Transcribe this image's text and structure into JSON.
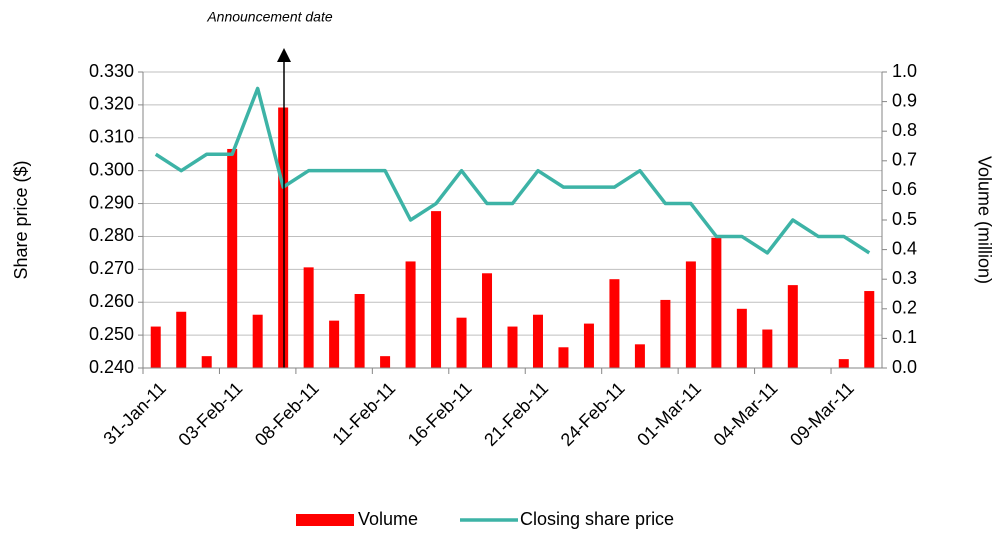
{
  "chart_data": {
    "type": "bar-line",
    "annotation": "Announcement date",
    "y_label": "Share price ($)",
    "y2_label": "Volume (million)",
    "categories": [
      "31-Jan-11",
      null,
      null,
      "03-Feb-11",
      null,
      null,
      "08-Feb-11",
      null,
      null,
      "11-Feb-11",
      null,
      null,
      "16-Feb-11",
      null,
      null,
      "21-Feb-11",
      null,
      null,
      "24-Feb-11",
      null,
      null,
      "01-Mar-11",
      null,
      null,
      "04-Mar-11",
      null,
      null,
      "09-Mar-11",
      null
    ],
    "series": [
      {
        "name": "Volume",
        "type": "bar",
        "axis": "y2",
        "color": "#ff0000",
        "values": [
          0.14,
          0.19,
          0.04,
          0.74,
          0.18,
          0.88,
          0.34,
          0.16,
          0.25,
          0.04,
          0.36,
          0.53,
          0.17,
          0.32,
          0.14,
          0.18,
          0.07,
          0.15,
          0.3,
          0.08,
          0.23,
          0.36,
          0.44,
          0.2,
          0.13,
          0.28,
          0,
          0.03,
          0.26
        ]
      },
      {
        "name": "Closing share price",
        "type": "line",
        "color": "#3db3a6",
        "values": [
          0.305,
          0.3,
          0.305,
          0.305,
          0.325,
          0.295,
          0.3,
          0.3,
          0.3,
          0.3,
          0.285,
          0.29,
          0.3,
          0.29,
          0.29,
          0.3,
          0.295,
          0.295,
          0.295,
          0.3,
          0.29,
          0.29,
          0.28,
          0.28,
          0.275,
          0.285,
          0.28,
          0.28,
          0.275
        ]
      }
    ],
    "ylim": [
      0.24,
      0.33
    ],
    "yticks": [
      {
        "value": 0.24,
        "label": "0.240"
      },
      {
        "value": 0.25,
        "label": "0.250"
      },
      {
        "value": 0.26,
        "label": "0.260"
      },
      {
        "value": 0.27,
        "label": "0.270"
      },
      {
        "value": 0.28,
        "label": "0.280"
      },
      {
        "value": 0.29,
        "label": "0.290"
      },
      {
        "value": 0.3,
        "label": "0.300"
      },
      {
        "value": 0.31,
        "label": "0.310"
      },
      {
        "value": 0.32,
        "label": "0.320"
      },
      {
        "value": 0.33,
        "label": "0.330"
      }
    ],
    "y2lim": [
      0,
      1
    ],
    "y2ticks": [
      {
        "value": 0,
        "label": "0.0"
      },
      0.1,
      0.2,
      0.3,
      0.4,
      0.5,
      0.6,
      0.7,
      0.8,
      0.9,
      {
        "value": 1,
        "label": "1.0"
      }
    ],
    "grid": true,
    "legend": "bottom"
  }
}
